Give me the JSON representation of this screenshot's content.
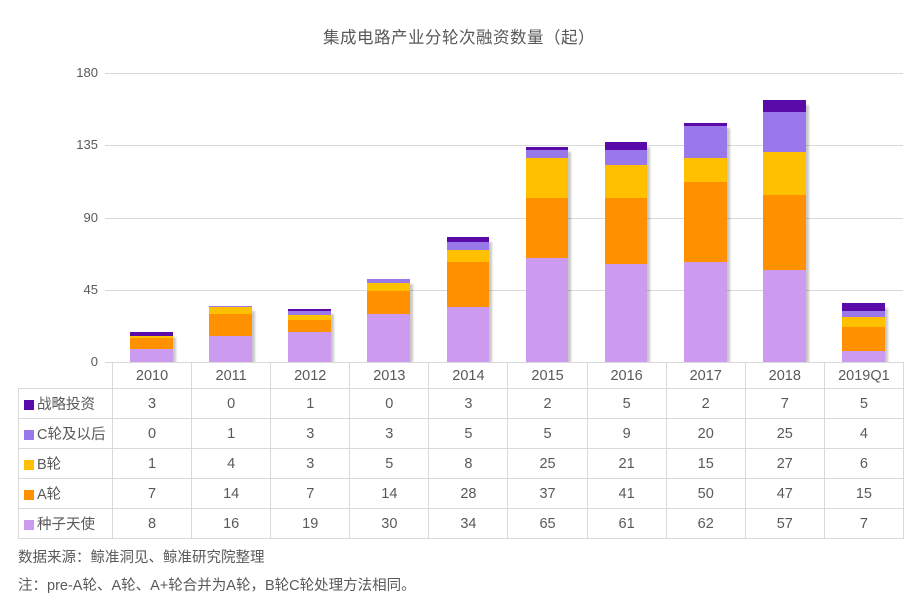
{
  "title": "集成电路产业分轮次融资数量（起）",
  "chart_data": {
    "type": "bar",
    "stacked": true,
    "title": "集成电路产业分轮次融资数量（起）",
    "categories": [
      "2010",
      "2011",
      "2012",
      "2013",
      "2014",
      "2015",
      "2016",
      "2017",
      "2018",
      "2019Q1"
    ],
    "series": [
      {
        "name": "战略投资",
        "color": "#5a0aa9",
        "values": [
          3,
          0,
          1,
          0,
          3,
          2,
          5,
          2,
          7,
          5
        ]
      },
      {
        "name": "C轮及以后",
        "color": "#9878ea",
        "values": [
          0,
          1,
          3,
          3,
          5,
          5,
          9,
          20,
          25,
          4
        ]
      },
      {
        "name": "B轮",
        "color": "#ffc000",
        "values": [
          1,
          4,
          3,
          5,
          8,
          25,
          21,
          15,
          27,
          6
        ]
      },
      {
        "name": "A轮",
        "color": "#ff9100",
        "values": [
          7,
          14,
          7,
          14,
          28,
          37,
          41,
          50,
          47,
          15
        ]
      },
      {
        "name": "种子天使",
        "color": "#cc9bf0",
        "values": [
          8,
          16,
          19,
          30,
          34,
          65,
          61,
          62,
          57,
          7
        ]
      }
    ],
    "series_visual_order": "first listed series is drawn at top of stack; last listed is at bottom",
    "xlabel": "",
    "ylabel": "",
    "ylim": [
      0,
      180
    ],
    "yticks": [
      0,
      45,
      90,
      135,
      180
    ],
    "grid": "horizontal",
    "legend_position": "data-table-below-chart"
  },
  "footer": {
    "source": "数据来源：鲸准洞见、鲸准研究院整理",
    "note": "注：pre-A轮、A轮、A+轮合并为A轮，B轮C轮处理方法相同。"
  },
  "colors": {
    "text": "#595959",
    "grid": "#d9d9d9",
    "border": "#d9d9d9",
    "background": "#ffffff"
  }
}
